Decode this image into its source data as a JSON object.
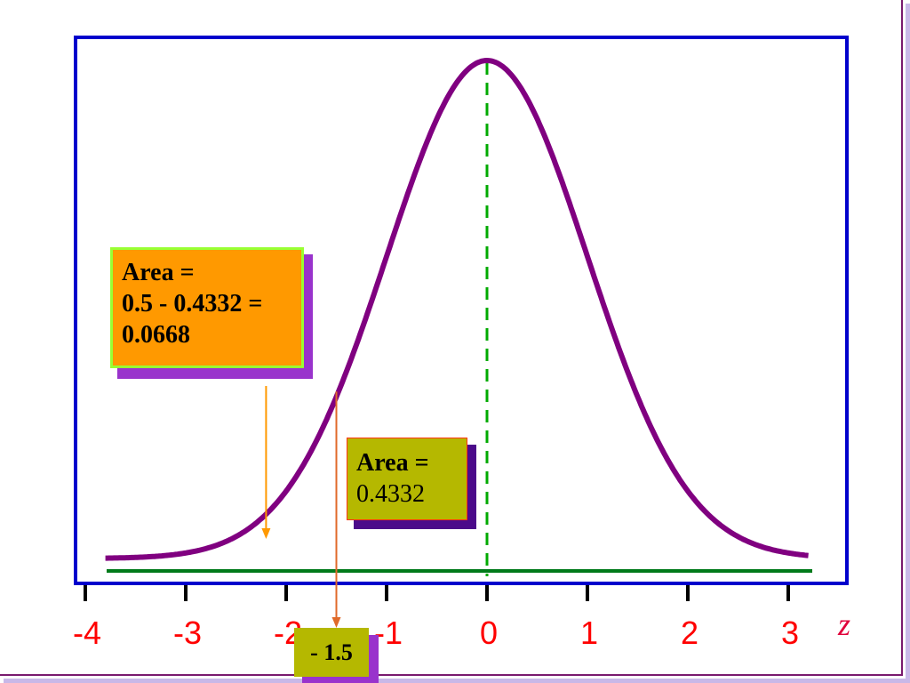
{
  "chart_data": {
    "type": "line",
    "title": "",
    "xlabel": "z",
    "ylabel": "",
    "xlim": [
      -3.8,
      3.2
    ],
    "xticks": [
      -4,
      -3,
      -2,
      -1,
      0,
      1,
      2,
      3
    ],
    "tick_labels": [
      "-4",
      "-3",
      "-2",
      "-1",
      "0",
      "1",
      "2",
      "3"
    ],
    "series": [
      {
        "distribution": "standard normal",
        "mean": 0,
        "sd": 1
      }
    ],
    "mean_line": {
      "x": 0,
      "style": "dashed"
    },
    "z_marker": {
      "x": -1.5
    },
    "annotations": [
      {
        "lines": [
          "Area =",
          "0.5 - 0.4332 =",
          "0.0668"
        ]
      },
      {
        "lines": [
          "Area =",
          "0.4332"
        ]
      },
      {
        "lines": [
          "- 1.5"
        ]
      }
    ],
    "colors": {
      "curve": "#800080",
      "baseline": "#007a1a",
      "mean_line": "#00aa00",
      "plot_border": "#0000cc",
      "tick_labels": "#ff0000",
      "tail_callout": "#ff9900",
      "center_callout": "#b5b800"
    }
  }
}
